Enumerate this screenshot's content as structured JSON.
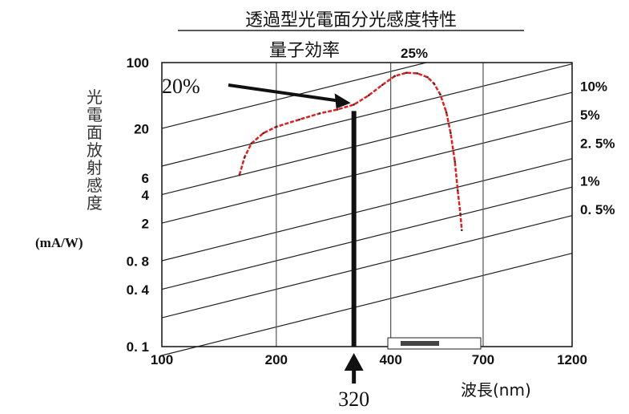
{
  "chart_data": {
    "type": "line",
    "title": "透過型光電面分光感度特性",
    "subtitle": "量子効率",
    "subtitle_value": "25%",
    "xlabel": "波長(nm)",
    "ylabel_lines": [
      "光",
      "電",
      "面",
      "放",
      "射",
      "感",
      "度"
    ],
    "yunit": "(mA/W)",
    "xscale": "log",
    "yscale": "log",
    "xlim": [
      100,
      1200
    ],
    "ylim": [
      0.1,
      100
    ],
    "grid": true,
    "x_ticks": [
      {
        "value": 100,
        "label": "100"
      },
      {
        "value": 200,
        "label": "200"
      },
      {
        "value": 400,
        "label": "400"
      },
      {
        "value": 700,
        "label": "700"
      },
      {
        "value": 1200,
        "label": "1200"
      }
    ],
    "y_ticks": [
      {
        "value": 100,
        "label": "100"
      },
      {
        "value": 20,
        "label": "20"
      },
      {
        "value": 6,
        "label": "6"
      },
      {
        "value": 4,
        "label": "4"
      },
      {
        "value": 2,
        "label": "2"
      },
      {
        "value": 0.8,
        "label": "0. 8"
      },
      {
        "value": 0.4,
        "label": "0. 4"
      },
      {
        "value": 0.1,
        "label": "0. 1"
      }
    ],
    "qe_lines": [
      {
        "label": "25%",
        "percent": 25
      },
      {
        "label": "10%",
        "percent": 10
      },
      {
        "label": "5%",
        "percent": 5
      },
      {
        "label": "2. 5%",
        "percent": 2.5
      },
      {
        "label": "1%",
        "percent": 1
      },
      {
        "label": "0. 5%",
        "percent": 0.5
      },
      {
        "label": "",
        "percent": 0.25
      },
      {
        "label": "",
        "percent": 0.1
      }
    ],
    "series": [
      {
        "color": "#e02020",
        "points": [
          [
            160,
            6.5
          ],
          [
            165,
            10
          ],
          [
            172,
            14
          ],
          [
            185,
            18
          ],
          [
            200,
            21
          ],
          [
            230,
            25
          ],
          [
            260,
            29
          ],
          [
            290,
            32
          ],
          [
            320,
            36
          ],
          [
            350,
            45
          ],
          [
            380,
            58
          ],
          [
            410,
            72
          ],
          [
            440,
            78
          ],
          [
            470,
            77
          ],
          [
            500,
            70
          ],
          [
            520,
            60
          ],
          [
            540,
            46
          ],
          [
            560,
            30
          ],
          [
            575,
            18
          ],
          [
            590,
            9
          ],
          [
            600,
            4.5
          ],
          [
            610,
            2.5
          ],
          [
            615,
            1.7
          ]
        ]
      }
    ],
    "annotations": [
      {
        "text": "20%",
        "x": 320,
        "y": 36
      },
      {
        "text": "320",
        "x": 320
      }
    ]
  }
}
